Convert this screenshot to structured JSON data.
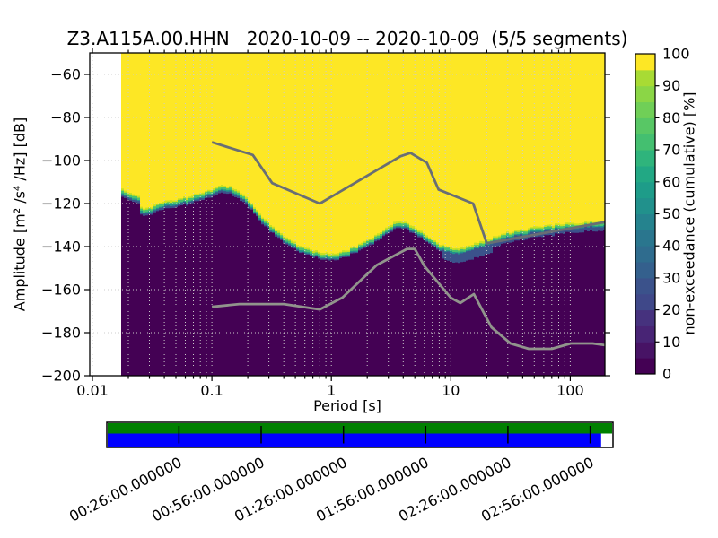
{
  "figure": {
    "title": "Z3.A115A.00.HHN   2020-10-09 -- 2020-10-09  (5/5 segments)",
    "xlabel": "Period [s]",
    "ylabel": "Amplitude [m² /s⁴ /Hz] [dB]",
    "colorbar_label": "non-exceedance (cumulative) [%]"
  },
  "chart_data": {
    "type": "heatmap",
    "title": "Z3.A115A.00.HHN   2020-10-09 -- 2020-10-09  (5/5 segments)",
    "xlabel": "Period [s]",
    "ylabel": "Amplitude [m² /s⁴ /Hz] [dB]",
    "x_scale": "log",
    "y_scale": "linear",
    "xlim": [
      0.0095,
      195
    ],
    "ylim": [
      -200,
      -50
    ],
    "x_ticks": [
      0.01,
      0.1,
      1,
      10,
      100
    ],
    "x_tick_labels": [
      "0.01",
      "0.1",
      "1",
      "10",
      "100"
    ],
    "y_ticks": [
      -60,
      -80,
      -100,
      -120,
      -140,
      -160,
      -180,
      -200
    ],
    "y_tick_labels": [
      "-60",
      "-80",
      "-100",
      "-120",
      "-140",
      "-160",
      "-180",
      "-200"
    ],
    "grid": "dotted, both major and minor x, major y",
    "colormap": "viridis, discrete 5% steps",
    "field_description": "cumulative non-exceedance histogram: 100% (yellow) above the spectral boundary, 0% (dark purple) below it, with a thin green/teal/blue transition band along the boundary",
    "color_above": "#fde725",
    "color_below": "#440154",
    "band_colors": [
      "#c8e020",
      "#4ac16d",
      "#21918c",
      "#3b528b"
    ],
    "data_start_period": 0.0174,
    "boundary_non_exceedance_edge": {
      "periods": [
        0.0174,
        0.0218,
        0.0246,
        0.0259,
        0.0308,
        0.0379,
        0.0492,
        0.0638,
        0.0827,
        0.104,
        0.127,
        0.157,
        0.187,
        0.222,
        0.264,
        0.33,
        0.414,
        0.527,
        0.66,
        0.826,
        1.05,
        1.32,
        1.71,
        2.1,
        2.59,
        3.08,
        3.6,
        4.21,
        4.83,
        5.75,
        6.83,
        8.12,
        10.0,
        11.9,
        14.1,
        16.8,
        20.7,
        25.5,
        31.3,
        38.6,
        50.0,
        64.8,
        84.1,
        109,
        141,
        196
      ],
      "db": [
        -115.4,
        -117.1,
        -118.3,
        -124.6,
        -123.8,
        -120.8,
        -120.0,
        -118.8,
        -116.7,
        -115.0,
        -113.3,
        -115.0,
        -117.9,
        -122.5,
        -128.3,
        -132.9,
        -137.1,
        -140.8,
        -143.3,
        -144.6,
        -145.0,
        -143.8,
        -140.8,
        -138.3,
        -135.4,
        -132.1,
        -130.0,
        -130.4,
        -132.5,
        -135.0,
        -137.9,
        -140.8,
        -142.5,
        -142.9,
        -141.7,
        -140.0,
        -138.3,
        -136.7,
        -135.0,
        -133.8,
        -132.9,
        -132.1,
        -131.3,
        -130.8,
        -130.4,
        -130.0
      ]
    },
    "noise_models": {
      "nhnm": {
        "color": "#696e74",
        "periods": [
          0.1,
          0.22,
          0.32,
          0.8,
          3.8,
          4.6,
          6.3,
          7.9,
          15.4,
          20.0,
          354.8
        ],
        "db": [
          -91.5,
          -97.4,
          -110.5,
          -120.0,
          -98.0,
          -96.5,
          -101.0,
          -113.5,
          -120.0,
          -138.5,
          -126.0
        ]
      },
      "nlnm": {
        "color": "#91948c",
        "periods": [
          0.1,
          0.17,
          0.4,
          0.8,
          1.24,
          2.4,
          4.3,
          5.0,
          6.0,
          10.0,
          12.0,
          15.6,
          21.9,
          31.6,
          45.0,
          70.0,
          101.0,
          154.0,
          328.0
        ],
        "db": [
          -168.0,
          -166.7,
          -166.7,
          -169.2,
          -163.7,
          -148.6,
          -141.1,
          -141.1,
          -149.0,
          -163.8,
          -166.2,
          -162.1,
          -177.5,
          -185.0,
          -187.5,
          -187.5,
          -185.0,
          -185.0,
          -187.5
        ]
      }
    },
    "colorbar": {
      "label": "non-exceedance (cumulative) [%]",
      "ticks": [
        0,
        10,
        20,
        30,
        40,
        50,
        60,
        70,
        80,
        90,
        100
      ],
      "segment_colors_bottom_to_top": [
        "#440154",
        "#471365",
        "#482475",
        "#46327e",
        "#3f4889",
        "#3b528b",
        "#34608d",
        "#2f6c8e",
        "#2a768e",
        "#25838e",
        "#21918c",
        "#1e9c89",
        "#22a884",
        "#2fb47c",
        "#44bf70",
        "#58c765",
        "#70cf57",
        "#8bd646",
        "#a8db34",
        "#fde725"
      ]
    },
    "timeline": {
      "tick_labels": [
        "00:26:00.000000",
        "00:56:00.000000",
        "01:26:00.000000",
        "01:56:00.000000",
        "02:26:00.000000",
        "02:56:00.000000"
      ],
      "tick_minutes": [
        26,
        56,
        86,
        116,
        146,
        176
      ],
      "start_minute": 0,
      "end_minute": 184,
      "coverage_end_minute": 180,
      "top_row_color": "#008000",
      "bottom_row_color": "#0000ff"
    }
  }
}
